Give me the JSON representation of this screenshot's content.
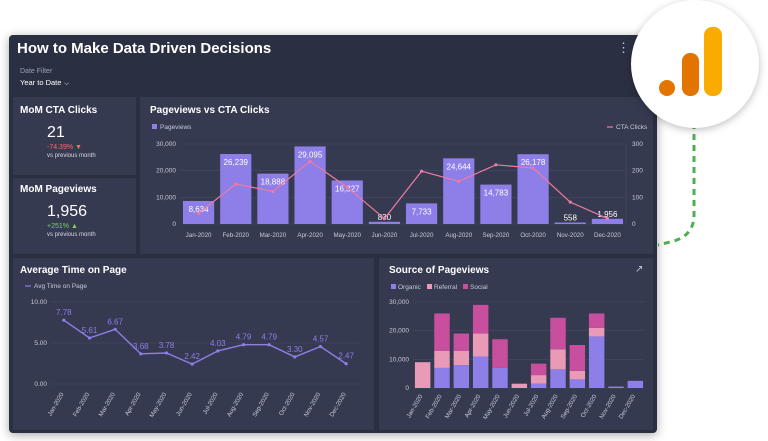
{
  "dashboard": {
    "title": "How to Make Data Driven Decisions",
    "menu_icon": "⋮",
    "date_filter_label": "Date Filter",
    "date_filter_value": "Year to Date"
  },
  "kpis": {
    "cta": {
      "title": "MoM CTA Clicks",
      "value": "21",
      "change": "-74.39%",
      "change_arrow": "▼",
      "sub": "vs previous month"
    },
    "pageviews": {
      "title": "MoM Pageviews",
      "value": "1,956",
      "change": "+251%",
      "change_arrow": "▲",
      "sub": "vs previous month"
    }
  },
  "logo": {
    "name": "google-analytics-logo",
    "colors": [
      "#e37400",
      "#f9ab00"
    ]
  },
  "colors": {
    "purple": "#8d7ee8",
    "pink": "#e89ab7",
    "magenta": "#c84f9e",
    "line_pink": "#f07aa2",
    "text": "#ffffff",
    "axis_text": "#c8cadb",
    "grid": "#464b63",
    "dashed_green": "#4cb050"
  },
  "chart_data": [
    {
      "type": "bar",
      "title": "Pageviews vs CTA Clicks",
      "categories": [
        "Jan-2020",
        "Feb-2020",
        "Mar-2020",
        "Apr-2020",
        "May-2020",
        "Jun-2020",
        "Jul-2020",
        "Aug-2020",
        "Sep-2020",
        "Oct-2020",
        "Nov-2020",
        "Dec-2020"
      ],
      "series": [
        {
          "name": "Pageviews",
          "type": "bar",
          "axis": "left",
          "values": [
            8634,
            26239,
            18888,
            29095,
            16327,
            830,
            7733,
            24644,
            14783,
            26178,
            558,
            1956
          ],
          "labels": [
            "8,634",
            "26,239",
            "18,888",
            "29,095",
            "16,327",
            "830",
            "7,733",
            "24,644",
            "14,783",
            "26,178",
            "558",
            "1,956"
          ]
        },
        {
          "name": "CTA Clicks",
          "type": "line",
          "axis": "right",
          "values": [
            40,
            150,
            122,
            235,
            138,
            20,
            198,
            160,
            222,
            210,
            82,
            21
          ]
        }
      ],
      "y_left": {
        "ticks": [
          "0",
          "10,000",
          "20,000",
          "30,000"
        ],
        "tick_values": [
          0,
          10000,
          20000,
          30000
        ],
        "max": 30000
      },
      "y_right": {
        "ticks": [
          "0",
          "100",
          "200",
          "300"
        ],
        "tick_values": [
          0,
          100,
          200,
          300
        ],
        "max": 300
      },
      "legend_left": "Pageviews",
      "legend_right": "CTA Clicks"
    },
    {
      "type": "line",
      "title": "Average Time on Page",
      "categories": [
        "Jan-2020",
        "Feb-2020",
        "Mar-2020",
        "Apr-2020",
        "May-2020",
        "Jun-2020",
        "Jul-2020",
        "Aug-2020",
        "Sep-2020",
        "Oct-2020",
        "Nov-2020",
        "Dec-2020"
      ],
      "series": [
        {
          "name": "Avg Time on Page",
          "values": [
            7.78,
            5.61,
            6.67,
            3.68,
            3.78,
            2.42,
            4.03,
            4.79,
            4.79,
            3.3,
            4.57,
            2.47
          ],
          "labels": [
            "7.78",
            "5.61",
            "6.67",
            "3.68",
            "3.78",
            "2.42",
            "4.03",
            "4.79",
            "4.79",
            "3.30",
            "4.57",
            "2.47"
          ]
        }
      ],
      "y_ticks": [
        "0.00",
        "5.00",
        "10.00"
      ],
      "y_tick_values": [
        0,
        5,
        10
      ],
      "ylim": [
        0,
        10
      ]
    },
    {
      "type": "bar",
      "stacked": true,
      "title": "Source of Pageviews",
      "expand_icon": "↗",
      "categories": [
        "Jan-2020",
        "Feb-2020",
        "Mar-2020",
        "Apr-2020",
        "May-2020",
        "Jun-2020",
        "Jul-2020",
        "Aug-2020",
        "Sep-2020",
        "Oct-2020",
        "Nov-2020",
        "Dec-2020"
      ],
      "series": [
        {
          "name": "Organic",
          "values": [
            0,
            7000,
            8000,
            11000,
            7000,
            0,
            1500,
            6500,
            3000,
            18000,
            500,
            2500
          ]
        },
        {
          "name": "Referral",
          "values": [
            9000,
            6000,
            5000,
            8000,
            0,
            1500,
            3000,
            7000,
            3000,
            3000,
            0,
            0
          ]
        },
        {
          "name": "Social",
          "values": [
            0,
            13000,
            6000,
            10000,
            10000,
            0,
            4000,
            11000,
            9000,
            5000,
            0,
            0
          ]
        }
      ],
      "y_ticks": [
        "0",
        "10,000",
        "20,000",
        "30,000"
      ],
      "y_tick_values": [
        0,
        10000,
        20000,
        30000
      ],
      "ylim": [
        0,
        30000
      ]
    }
  ]
}
